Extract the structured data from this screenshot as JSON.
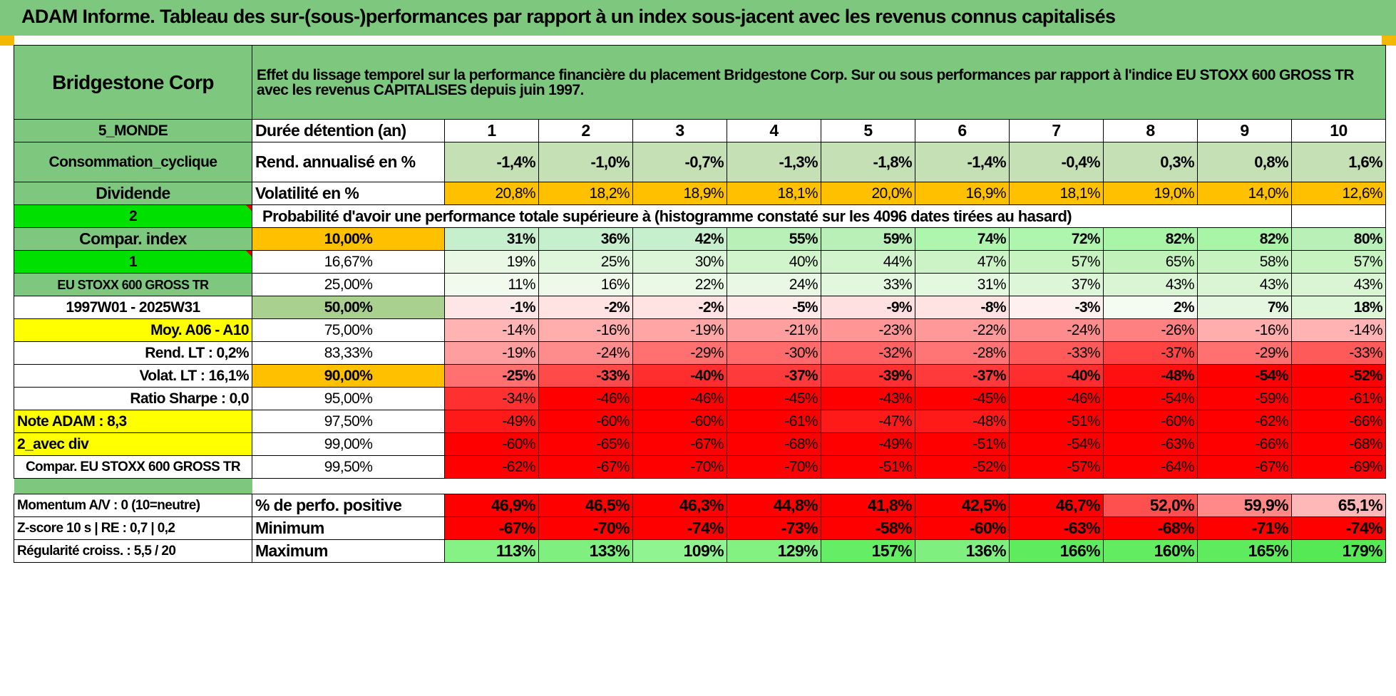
{
  "title": "ADAM Informe. Tableau des sur-(sous-)performances par rapport à un index sous-jacent avec les revenus connus capitalisés",
  "colors": {
    "header_green": "#7ec77e",
    "light_green": "#c5e0b4",
    "yellow": "#ffff00",
    "orange": "#ffc000",
    "lime": "#00e000",
    "label_red": "#e00000"
  },
  "header": {
    "company": "Bridgestone Corp",
    "description": "Effet du lissage temporel sur la performance financière du placement Bridgestone Corp. Sur ou sous performances par rapport à l'indice EU STOXX 600 GROSS TR avec les revenus CAPITALISES depuis juin 1997."
  },
  "years": [
    "1",
    "2",
    "3",
    "4",
    "5",
    "6",
    "7",
    "8",
    "9",
    "10"
  ],
  "rows": [
    {
      "left": "5_MONDE",
      "label": "Durée détention (an)",
      "values": [
        "1",
        "2",
        "3",
        "4",
        "5",
        "6",
        "7",
        "8",
        "9",
        "10"
      ]
    },
    {
      "left": "Consommation_cyclique",
      "label": "Rend. annualisé en %",
      "values": [
        "-1,4%",
        "-1,0%",
        "-0,7%",
        "-1,3%",
        "-1,8%",
        "-1,4%",
        "-0,4%",
        "0,3%",
        "0,8%",
        "1,6%"
      ]
    },
    {
      "left": "Dividende",
      "label": "Volatilité en %",
      "values": [
        "20,8%",
        "18,2%",
        "18,9%",
        "18,1%",
        "20,0%",
        "16,9%",
        "18,1%",
        "19,0%",
        "14,0%",
        "12,6%"
      ]
    },
    {
      "left": "2",
      "label": "Probabilité d'avoir une performance totale supérieure à (histogramme constaté sur les 4096 dates tirées au hasard)"
    },
    {
      "left": "Compar. index",
      "label": "10,00%",
      "values": [
        "31%",
        "36%",
        "42%",
        "55%",
        "59%",
        "74%",
        "72%",
        "82%",
        "82%",
        "80%"
      ]
    },
    {
      "left": "1",
      "label": "16,67%",
      "values": [
        "19%",
        "25%",
        "30%",
        "40%",
        "44%",
        "47%",
        "57%",
        "65%",
        "58%",
        "57%"
      ]
    },
    {
      "left": "EU STOXX 600 GROSS TR",
      "label": "25,00%",
      "values": [
        "11%",
        "16%",
        "22%",
        "24%",
        "33%",
        "31%",
        "37%",
        "43%",
        "43%",
        "43%"
      ]
    },
    {
      "left": "1997W01 - 2025W31",
      "label": "50,00%",
      "values": [
        "-1%",
        "-2%",
        "-2%",
        "-5%",
        "-9%",
        "-8%",
        "-3%",
        "2%",
        "7%",
        "18%"
      ]
    },
    {
      "left": "Moy. A06 - A10",
      "label": "75,00%",
      "values": [
        "-14%",
        "-16%",
        "-19%",
        "-21%",
        "-23%",
        "-22%",
        "-24%",
        "-26%",
        "-16%",
        "-14%"
      ]
    },
    {
      "left": "Rend. LT :    0,2%",
      "label": "83,33%",
      "values": [
        "-19%",
        "-24%",
        "-29%",
        "-30%",
        "-32%",
        "-28%",
        "-33%",
        "-37%",
        "-29%",
        "-33%"
      ]
    },
    {
      "left": "Volat. LT :    16,1%",
      "label": "90,00%",
      "values": [
        "-25%",
        "-33%",
        "-40%",
        "-37%",
        "-39%",
        "-37%",
        "-40%",
        "-48%",
        "-54%",
        "-52%"
      ]
    },
    {
      "left": "Ratio Sharpe :    0,0",
      "label": "95,00%",
      "values": [
        "-34%",
        "-46%",
        "-46%",
        "-45%",
        "-43%",
        "-45%",
        "-46%",
        "-54%",
        "-59%",
        "-61%"
      ]
    },
    {
      "left": "Note ADAM : 8,3",
      "label": "97,50%",
      "values": [
        "-49%",
        "-60%",
        "-60%",
        "-61%",
        "-47%",
        "-48%",
        "-51%",
        "-60%",
        "-62%",
        "-66%"
      ]
    },
    {
      "left": "2_avec div",
      "label": "99,00%",
      "values": [
        "-60%",
        "-65%",
        "-67%",
        "-68%",
        "-49%",
        "-51%",
        "-54%",
        "-63%",
        "-66%",
        "-68%"
      ]
    },
    {
      "left": "Compar. EU STOXX 600 GROSS TR",
      "label": "99,50%",
      "values": [
        "-62%",
        "-67%",
        "-70%",
        "-70%",
        "-51%",
        "-52%",
        "-57%",
        "-64%",
        "-67%",
        "-69%"
      ]
    },
    {
      "left": "Momentum A/V : 0 (10=neutre)",
      "label": "% de perfo. positive",
      "values": [
        "46,9%",
        "46,5%",
        "46,3%",
        "44,8%",
        "41,8%",
        "42,5%",
        "46,7%",
        "52,0%",
        "59,9%",
        "65,1%"
      ]
    },
    {
      "left": "Z-score 10 s | RE : 0,7 | 0,2",
      "label": "Minimum",
      "values": [
        "-67%",
        "-70%",
        "-74%",
        "-73%",
        "-58%",
        "-60%",
        "-63%",
        "-68%",
        "-71%",
        "-74%"
      ]
    },
    {
      "left": "Régularité croiss. : 5,5 / 20",
      "label": "Maximum",
      "values": [
        "113%",
        "133%",
        "109%",
        "129%",
        "157%",
        "136%",
        "166%",
        "160%",
        "165%",
        "179%"
      ]
    }
  ]
}
